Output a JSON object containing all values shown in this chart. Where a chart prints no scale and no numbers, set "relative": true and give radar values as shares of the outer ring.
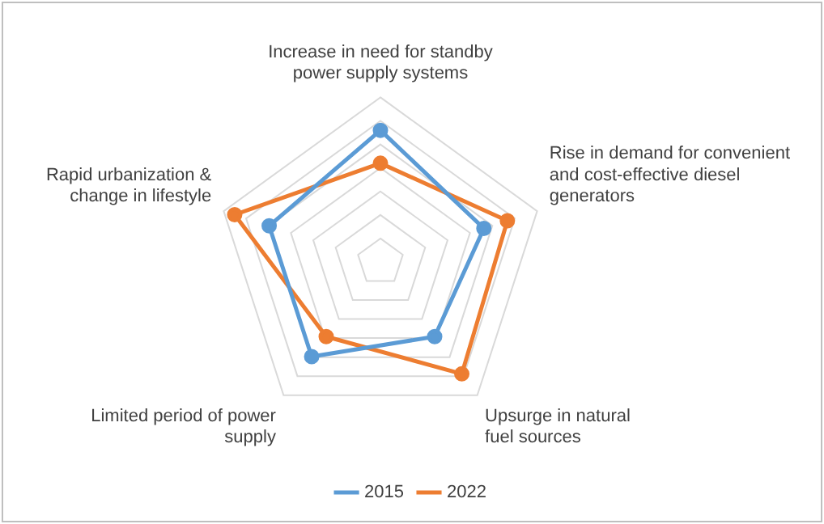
{
  "chart_data": {
    "type": "radar",
    "relative": true,
    "legend": "bottom",
    "marker": "circle",
    "categories": [
      "Increase in need for standby power supply systems",
      "Rise in demand for convenient and cost-effective diesel generators",
      "Upsurge in natural fuel sources",
      "Limited period of power supply",
      "Rapid urbanization & change in lifestyle"
    ],
    "series": [
      {
        "name": "2015",
        "color": "#5b9bd5",
        "values": [
          0.8,
          0.66,
          0.56,
          0.71,
          0.71
        ]
      },
      {
        "name": "2022",
        "color": "#ed7d31",
        "values": [
          0.6,
          0.81,
          0.84,
          0.56,
          0.93
        ]
      }
    ]
  }
}
